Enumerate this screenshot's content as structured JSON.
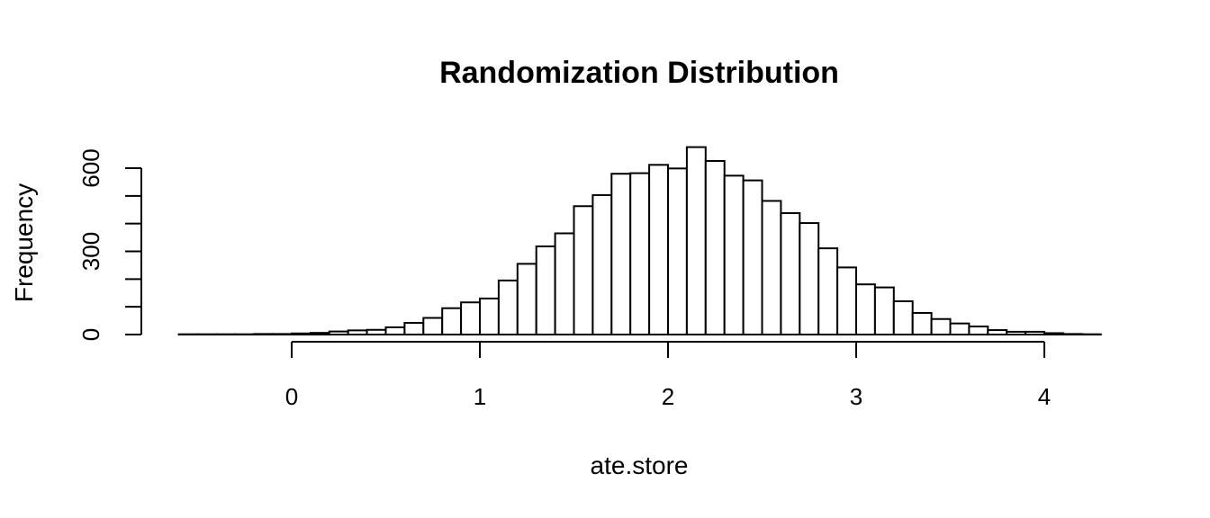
{
  "chart_data": {
    "type": "bar",
    "title": "Randomization Distribution",
    "xlabel": "ate.store",
    "ylabel": "Frequency",
    "bin_start": -0.6,
    "bin_width": 0.1,
    "values": [
      1,
      1,
      1,
      1,
      2,
      2,
      4,
      6,
      11,
      15,
      17,
      26,
      42,
      60,
      95,
      116,
      130,
      195,
      255,
      318,
      365,
      463,
      503,
      580,
      582,
      612,
      599,
      676,
      626,
      573,
      556,
      482,
      438,
      402,
      311,
      242,
      181,
      170,
      120,
      78,
      56,
      40,
      29,
      16,
      10,
      10,
      5,
      2,
      1
    ],
    "xlim": [
      -0.6,
      4.3
    ],
    "ylim": [
      0,
      680
    ],
    "x_ticks": [
      0,
      1,
      2,
      3,
      4
    ],
    "x_tick_labels": [
      "0",
      "1",
      "2",
      "3",
      "4"
    ],
    "y_ticks": [
      0,
      100,
      200,
      300,
      400,
      500,
      600
    ],
    "y_tick_labels": [
      "0",
      "",
      "",
      "300",
      "",
      "",
      "600"
    ],
    "grid": false
  }
}
